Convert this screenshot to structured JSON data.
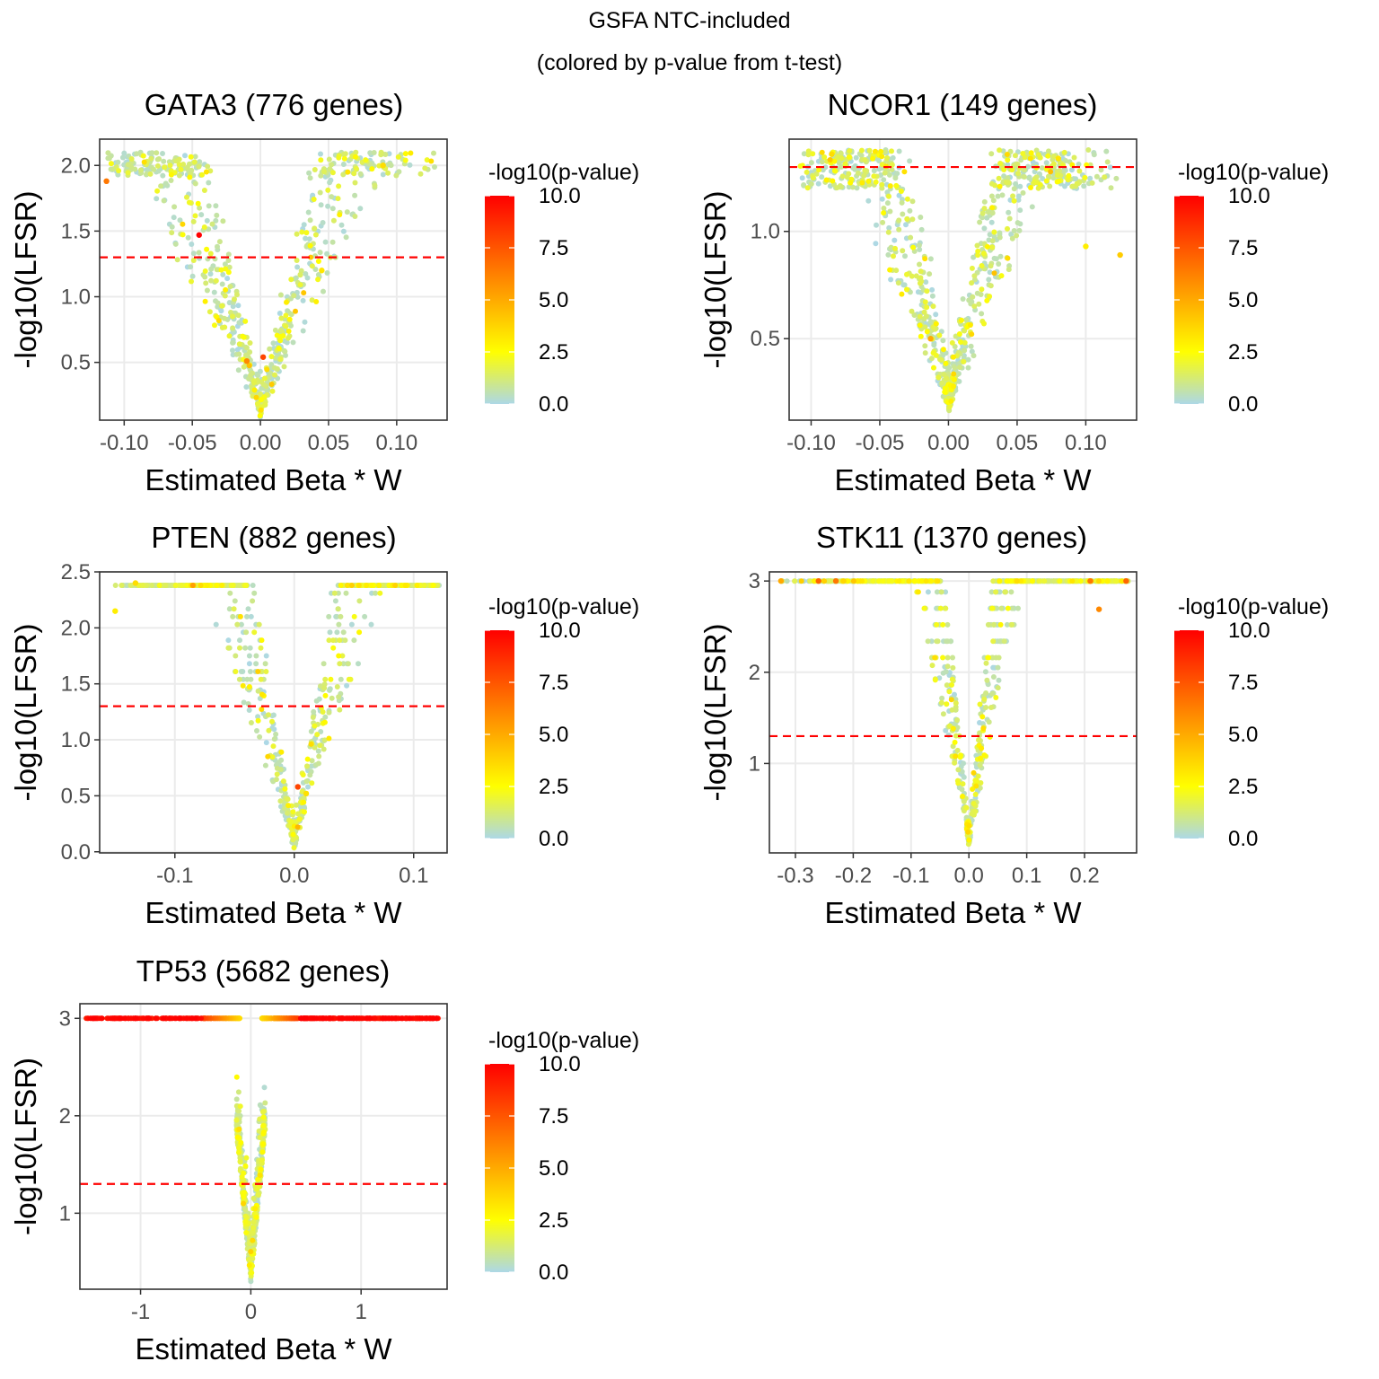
{
  "figure": {
    "title_line1": "GSFA NTC-included",
    "title_line2": "(colored by p-value from t-test)"
  },
  "palette": {
    "low": "#add8e6",
    "mid": "#ffff00",
    "high": "#ff0000",
    "threshold_line": "#ff0000",
    "grid": "#ebebeb",
    "axis": "#333333",
    "text": "#000000",
    "tick_text": "#4d4d4d"
  },
  "chart_data": [
    {
      "type": "scatter",
      "title": "GATA3 (776 genes)",
      "xlabel": "Estimated Beta * W",
      "ylabel": "-log10(LFSR)",
      "xlim": [
        -0.118,
        0.137
      ],
      "ylim": [
        0.06,
        2.2
      ],
      "xticks": [
        -0.1,
        -0.05,
        0.0,
        0.05,
        0.1
      ],
      "xtick_labels": [
        "-0.10",
        "-0.05",
        "0.00",
        "0.05",
        "0.10"
      ],
      "yticks": [
        0.5,
        1.0,
        1.5,
        2.0
      ],
      "ytick_labels": [
        "0.5",
        "1.0",
        "1.5",
        "2.0"
      ],
      "threshold_y": 1.3,
      "point_profile": {
        "n": 700,
        "cap": 2.1,
        "slope": 30,
        "x_spread": 0.12,
        "y_min": 0.08,
        "levels": false
      },
      "highlighted_points": [
        {
          "x": -0.113,
          "y": 1.88,
          "p": 6.5
        },
        {
          "x": -0.045,
          "y": 1.47,
          "p": 10.0
        },
        {
          "x": 0.002,
          "y": 0.54,
          "p": 8.0
        },
        {
          "x": -0.01,
          "y": 0.51,
          "p": 6.0
        },
        {
          "x": 0.09,
          "y": 2.0,
          "p": 3.5
        },
        {
          "x": 0.045,
          "y": 1.2,
          "p": 3.2
        }
      ],
      "legend": {
        "title": "-log10(p-value)",
        "labels": [
          "10.0",
          "7.5",
          "5.0",
          "2.5",
          "0.0"
        ],
        "min": 0,
        "max": 10
      }
    },
    {
      "type": "scatter",
      "title": "NCOR1 (149 genes)",
      "xlabel": "Estimated Beta * W",
      "ylabel": "-log10(LFSR)",
      "xlim": [
        -0.116,
        0.137
      ],
      "ylim": [
        0.12,
        1.43
      ],
      "xticks": [
        -0.1,
        -0.05,
        0.0,
        0.05,
        0.1
      ],
      "xtick_labels": [
        "-0.10",
        "-0.05",
        "0.00",
        "0.05",
        "0.10"
      ],
      "yticks": [
        0.5,
        1.0
      ],
      "ytick_labels": [
        "0.5",
        "1.0"
      ],
      "threshold_y": 1.3,
      "point_profile": {
        "n": 900,
        "cap": 1.38,
        "slope": 22,
        "x_spread": 0.12,
        "y_min": 0.15,
        "levels": false
      },
      "highlighted_points": [
        {
          "x": 0.125,
          "y": 0.89,
          "p": 4.0
        },
        {
          "x": -0.013,
          "y": 0.5,
          "p": 5.0
        },
        {
          "x": -0.085,
          "y": 1.36,
          "p": 3.5
        },
        {
          "x": 0.1,
          "y": 0.93,
          "p": 3.0
        },
        {
          "x": 0.08,
          "y": 1.34,
          "p": 3.2
        }
      ],
      "legend": {
        "title": "-log10(p-value)",
        "labels": [
          "10.0",
          "7.5",
          "5.0",
          "2.5",
          "0.0"
        ],
        "min": 0,
        "max": 10
      }
    },
    {
      "type": "scatter",
      "title": "PTEN (882 genes)",
      "xlabel": "Estimated Beta * W",
      "ylabel": "-log10(LFSR)",
      "xlim": [
        -0.163,
        0.128
      ],
      "ylim": [
        -0.01,
        2.5
      ],
      "xticks": [
        -0.1,
        0.0,
        0.1
      ],
      "xtick_labels": [
        "-0.1",
        "0.0",
        "0.1"
      ],
      "yticks": [
        0.0,
        0.5,
        1.0,
        1.5,
        2.0,
        2.5
      ],
      "ytick_labels": [
        "0.0",
        "0.5",
        "1.0",
        "1.5",
        "2.0",
        "2.5"
      ],
      "threshold_y": 1.3,
      "point_profile": {
        "n": 750,
        "cap": 2.4,
        "slope": 45,
        "x_spread": 0.15,
        "y_min": 0.02,
        "levels": true
      },
      "highlighted_points": [
        {
          "x": 0.003,
          "y": 0.58,
          "p": 8.0
        },
        {
          "x": -0.133,
          "y": 2.4,
          "p": 3.5
        },
        {
          "x": -0.15,
          "y": 2.15,
          "p": 3.0
        },
        {
          "x": 0.01,
          "y": 0.52,
          "p": 3.4
        }
      ],
      "legend": {
        "title": "-log10(p-value)",
        "labels": [
          "10.0",
          "7.5",
          "5.0",
          "2.5",
          "0.0"
        ],
        "min": 0,
        "max": 10
      }
    },
    {
      "type": "scatter",
      "title": "STK11 (1370 genes)",
      "xlabel": "Estimated Beta * W",
      "ylabel": "-log10(LFSR)",
      "xlim": [
        -0.345,
        0.29
      ],
      "ylim": [
        0.02,
        3.1
      ],
      "xticks": [
        -0.3,
        -0.2,
        -0.1,
        0.0,
        0.1,
        0.2
      ],
      "xtick_labels": [
        "-0.3",
        "-0.2",
        "-0.1",
        "0.0",
        "0.1",
        "0.2"
      ],
      "yticks": [
        1,
        2,
        3
      ],
      "ytick_labels": [
        "1",
        "2",
        "3"
      ],
      "threshold_y": 1.3,
      "point_profile": {
        "n": 1000,
        "cap": 3.0,
        "slope": 45,
        "x_spread": 0.33,
        "y_min": 0.08,
        "levels": true
      },
      "highlighted_points": [
        {
          "x": -0.325,
          "y": 3.0,
          "p": 5.0
        },
        {
          "x": -0.26,
          "y": 3.0,
          "p": 7.0
        },
        {
          "x": -0.23,
          "y": 3.0,
          "p": 6.5
        },
        {
          "x": 0.225,
          "y": 2.69,
          "p": 6.0
        },
        {
          "x": 0.272,
          "y": 3.0,
          "p": 7.0
        },
        {
          "x": 0.21,
          "y": 3.0,
          "p": 6.5
        }
      ],
      "legend": {
        "title": "-log10(p-value)",
        "labels": [
          "10.0",
          "7.5",
          "5.0",
          "2.5",
          "0.0"
        ],
        "min": 0,
        "max": 10
      }
    },
    {
      "type": "scatter",
      "title": "TP53 (5682 genes)",
      "xlabel": "Estimated Beta * W",
      "ylabel": "-log10(LFSR)",
      "xlim": [
        -1.55,
        1.78
      ],
      "ylim": [
        0.22,
        3.15
      ],
      "xticks": [
        -1,
        0,
        1
      ],
      "xtick_labels": [
        "-1",
        "0",
        "1"
      ],
      "yticks": [
        1,
        2,
        3
      ],
      "ytick_labels": [
        "1",
        "2",
        "3"
      ],
      "threshold_y": 1.3,
      "point_profile": {
        "n": 1100,
        "cap": 3.0,
        "slope": 12,
        "x_spread": 1.6,
        "y_min": 0.28,
        "levels": true,
        "tp53": true
      },
      "highlighted_points": [
        {
          "x": -1.43,
          "y": 3.0,
          "p": 10.0
        },
        {
          "x": 1.65,
          "y": 3.0,
          "p": 10.0
        }
      ],
      "legend": {
        "title": "-log10(p-value)",
        "labels": [
          "10.0",
          "7.5",
          "5.0",
          "2.5",
          "0.0"
        ],
        "min": 0,
        "max": 10
      }
    }
  ]
}
